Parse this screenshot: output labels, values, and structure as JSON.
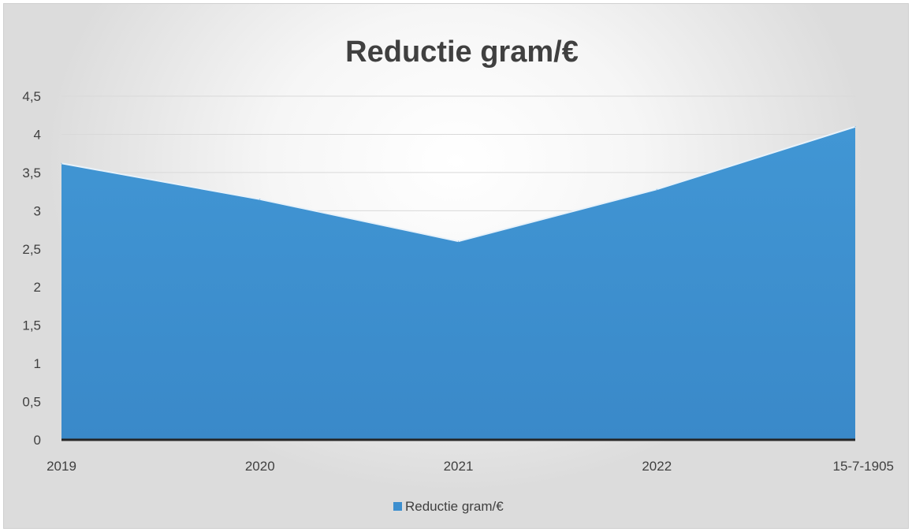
{
  "chart_data": {
    "type": "area",
    "title": "Reductie gram/€",
    "categories": [
      "2019",
      "2020",
      "2021",
      "2022",
      "15-7-1905"
    ],
    "series": [
      {
        "name": "Reductie gram/€",
        "values": [
          3.62,
          3.15,
          2.6,
          3.28,
          4.1
        ]
      }
    ],
    "y_tick_labels": [
      "0",
      "0,5",
      "1",
      "1,5",
      "2",
      "2,5",
      "3",
      "3,5",
      "4",
      "4,5"
    ],
    "ylim": [
      0,
      4.5
    ],
    "grid": true,
    "legend": "bottom",
    "colors": {
      "series": "#3d8fcf",
      "gridline": "#d9d9d9",
      "axis": "#262626",
      "text": "#404040"
    }
  }
}
